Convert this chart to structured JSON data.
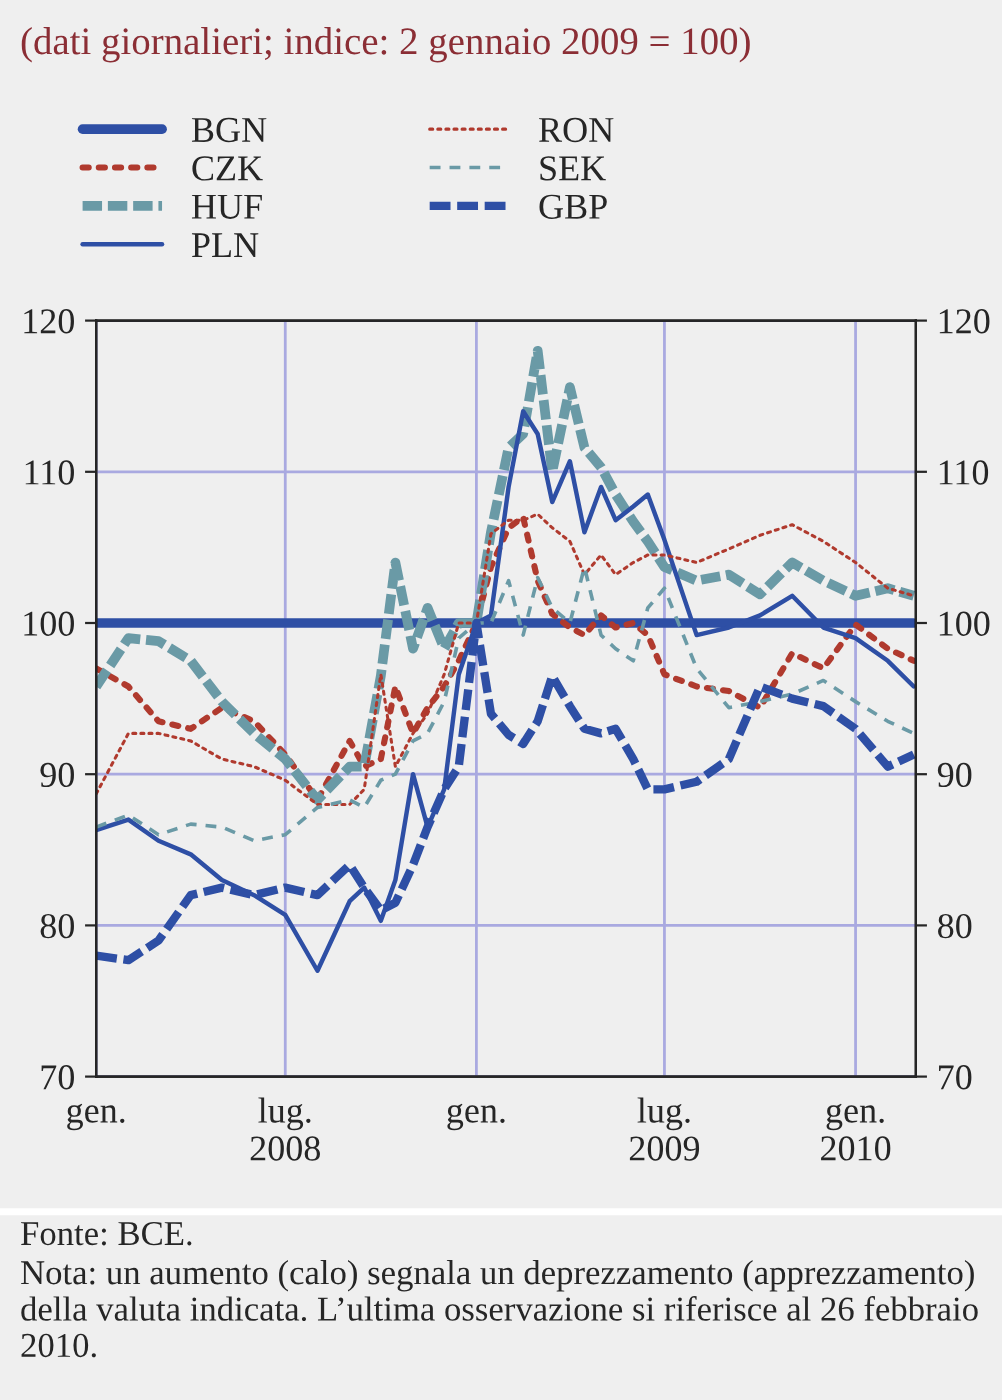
{
  "chart_data": {
    "type": "line",
    "subtitle": "(dati giornalieri; indice: 2 gennaio 2009 = 100)",
    "x": [
      "2008-01-01",
      "2008-02-01",
      "2008-03-01",
      "2008-04-01",
      "2008-05-01",
      "2008-06-01",
      "2008-07-01",
      "2008-08-01",
      "2008-09-01",
      "2008-09-15",
      "2008-10-01",
      "2008-10-15",
      "2008-11-01",
      "2008-11-15",
      "2008-12-01",
      "2008-12-15",
      "2009-01-01",
      "2009-01-15",
      "2009-02-01",
      "2009-02-15",
      "2009-03-01",
      "2009-03-15",
      "2009-04-01",
      "2009-04-15",
      "2009-05-01",
      "2009-05-15",
      "2009-06-01",
      "2009-06-15",
      "2009-07-01",
      "2009-08-01",
      "2009-09-01",
      "2009-10-01",
      "2009-11-01",
      "2009-12-01",
      "2010-01-01",
      "2010-02-01",
      "2010-02-26"
    ],
    "series": [
      {
        "name": "BGN",
        "color": "#2e4fa5",
        "line_style": "solid",
        "values": [
          100,
          100,
          100,
          100,
          100,
          100,
          100,
          100,
          100,
          100,
          100,
          100,
          100,
          100,
          100,
          100,
          100,
          100,
          100,
          100,
          100,
          100,
          100,
          100,
          100,
          100,
          100,
          100,
          100,
          100,
          100,
          100,
          100,
          100,
          100,
          100,
          100
        ]
      },
      {
        "name": "CZK",
        "color": "#b03a2e",
        "line_style": "dotted",
        "values": [
          97,
          95.8,
          93.5,
          93,
          94.4,
          93.5,
          91.3,
          88.3,
          92.2,
          90.5,
          91,
          95.8,
          92.7,
          94.4,
          95.8,
          97.5,
          100,
          103.7,
          106.3,
          107,
          102.8,
          100.6,
          99.7,
          99.2,
          100.5,
          99.7,
          100,
          99.2,
          96.6,
          95.8,
          95.5,
          94.4,
          98,
          97,
          99.9,
          98.3,
          97.5
        ]
      },
      {
        "name": "HUF",
        "color": "#6a9aa6",
        "line_style": "dashed",
        "values": [
          95.8,
          99,
          98.8,
          97.5,
          94.8,
          92.7,
          91,
          88.3,
          90.5,
          90.5,
          96.5,
          104,
          98.3,
          101,
          98.3,
          100,
          100,
          106,
          111.6,
          112.5,
          118,
          110,
          115.6,
          111.6,
          110.3,
          108.5,
          106.7,
          105.4,
          103.7,
          102.8,
          103.2,
          101.9,
          104,
          102.8,
          101.8,
          102.3,
          101.8
        ]
      },
      {
        "name": "PLN",
        "color": "#2e4fa5",
        "line_style": "solid",
        "values": [
          86.3,
          87,
          85.6,
          84.7,
          83,
          82,
          80.7,
          77,
          81.6,
          82.5,
          80.3,
          83,
          90,
          86.5,
          89,
          96.6,
          100,
          100.5,
          109,
          114,
          112.5,
          108,
          110.7,
          106,
          109,
          106.8,
          107.7,
          108.5,
          105.5,
          99.2,
          99.7,
          100.5,
          101.8,
          99.7,
          99,
          97.5,
          95.8
        ]
      },
      {
        "name": "RON",
        "color": "#b03a2e",
        "line_style": "dotted",
        "values": [
          88.7,
          92.7,
          92.7,
          92.2,
          91,
          90.5,
          89.6,
          88,
          88,
          89,
          96.6,
          90.5,
          92.7,
          94,
          96.6,
          100,
          100,
          105.9,
          106.8,
          106.8,
          107.2,
          106.3,
          105.4,
          103.2,
          104.5,
          103.2,
          104,
          104.5,
          104.5,
          104,
          104.9,
          105.8,
          106.5,
          105.4,
          104,
          102.3,
          101.8
        ]
      },
      {
        "name": "SEK",
        "color": "#6a9aa6",
        "line_style": "dashed",
        "values": [
          86.5,
          87.3,
          86,
          86.7,
          86.5,
          85.6,
          86,
          87.8,
          88.3,
          87.8,
          89.6,
          90,
          92.2,
          92.7,
          94.8,
          99,
          100,
          100,
          102.8,
          99.2,
          103,
          101,
          100,
          103.7,
          99.2,
          98.3,
          97.5,
          101,
          102.3,
          97,
          94.4,
          94.8,
          95.3,
          96.2,
          94.8,
          93.5,
          92.7
        ]
      },
      {
        "name": "GBP",
        "color": "#2e4fa5",
        "line_style": "dashed",
        "values": [
          78,
          77.7,
          79,
          82,
          82.5,
          82,
          82.5,
          82,
          84,
          82.5,
          81,
          81.5,
          84,
          86.5,
          89,
          90.5,
          100,
          94,
          92.6,
          92,
          93.5,
          96.5,
          94.5,
          93,
          92.7,
          93,
          91,
          89,
          89,
          89.5,
          91,
          95.8,
          95,
          94.5,
          93,
          90.5,
          91.3
        ]
      }
    ],
    "xlim": [
      "2008-01-01",
      "2010-02-28"
    ],
    "xticks": [
      {
        "value": "2008-01-01",
        "label": "gen."
      },
      {
        "value": "2008-07-01",
        "label": "lug.\n2008"
      },
      {
        "value": "2009-01-01",
        "label": "gen."
      },
      {
        "value": "2009-07-01",
        "label": "lug.\n2009"
      },
      {
        "value": "2010-01-01",
        "label": "gen.\n2010"
      }
    ],
    "ylim": [
      70,
      120
    ],
    "yticks": [
      70,
      80,
      90,
      100,
      110,
      120
    ],
    "y2lim": [
      70,
      120
    ],
    "y2ticks": [
      70,
      80,
      90,
      100,
      110,
      120
    ],
    "grid": true,
    "legend": "top",
    "annotations": [
      "Fonte: BCE.",
      "Nota: un aumento (calo) segnala un deprezzamento (apprezzamento) della valuta indicata. L’ultima osservazione si riferisce al 26 febbraio 2010."
    ]
  }
}
